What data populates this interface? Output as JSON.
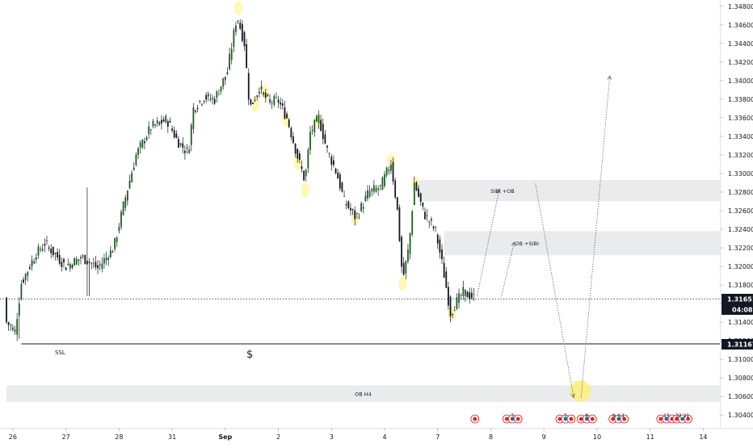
{
  "chart_data": {
    "type": "candlestick",
    "instrument": "",
    "y_axis": {
      "min": 1.3035,
      "max": 1.3485,
      "tick_labels": [
        "1.34800",
        "1.34600",
        "1.34400",
        "1.34200",
        "1.34000",
        "1.33800",
        "1.33600",
        "1.33400",
        "1.33200",
        "1.33000",
        "1.32800",
        "1.32600",
        "1.32400",
        "1.32200",
        "1.32000",
        "1.31800",
        "1.31600",
        "1.31400",
        "1.31200",
        "1.31000",
        "1.30800",
        "1.30600",
        "1.30400"
      ],
      "tick_values": [
        1.348,
        1.346,
        1.344,
        1.342,
        1.34,
        1.338,
        1.336,
        1.334,
        1.332,
        1.33,
        1.328,
        1.326,
        1.324,
        1.322,
        1.32,
        1.318,
        1.316,
        1.314,
        1.312,
        1.31,
        1.308,
        1.306,
        1.304
      ],
      "position": "right"
    },
    "x_axis": {
      "labels": [
        "26",
        "27",
        "28",
        "31",
        "Sep",
        "2",
        "3",
        "4",
        "7",
        "8",
        "9",
        "10",
        "11",
        "14"
      ],
      "label_positions": [
        0.0,
        5.0,
        10.0,
        15.0,
        20.0,
        25.0,
        30.0,
        35.0,
        40.0,
        45.0,
        50.0,
        55.0,
        60.0,
        65.0
      ],
      "range": [
        -0.6,
        65.5
      ]
    },
    "current_price": {
      "label": "1.31651",
      "value": 1.31651,
      "countdown": "04:08",
      "color": "#131722"
    },
    "ssl_level": {
      "label": "1.31167",
      "value": 1.31167,
      "text": "SSL"
    },
    "zones": [
      {
        "label": "SIBI +OB",
        "y_low": 1.327,
        "y_high": 1.3293,
        "x_start": 38.3
      },
      {
        "label": "OB +SIBI",
        "y_low": 1.3212,
        "y_high": 1.3238,
        "x_start": 40.6
      },
      {
        "label": "OB H4",
        "y_low": 1.3054,
        "y_high": 1.3072,
        "x_start": -0.6
      }
    ],
    "candles": [],
    "markers": {
      "dollar": "$"
    },
    "event_badges": [
      {
        "x": 43.5,
        "text": ""
      },
      {
        "x": 46.5,
        "text": "3"
      },
      {
        "x": 51.5,
        "text": "5"
      },
      {
        "x": 53.5,
        "text": "8"
      },
      {
        "x": 56.5,
        "text": "9 4 1"
      },
      {
        "x": 61.0,
        "text": "13"
      },
      {
        "x": 62.5,
        "text": "33 21"
      }
    ],
    "projection_paths": [
      [
        [
          43.7,
          1.3168
        ],
        [
          45.8,
          1.3283
        ]
      ],
      [
        [
          46.0,
          1.3168
        ],
        [
          47.2,
          1.3226
        ]
      ],
      [
        [
          49.2,
          1.3289
        ],
        [
          52.8,
          1.3059
        ]
      ],
      [
        [
          53.5,
          1.3059
        ],
        [
          56.2,
          1.3405
        ]
      ]
    ],
    "highlights": [
      [
        21.2,
        1.3478
      ],
      [
        22.8,
        1.3374
      ],
      [
        23.7,
        1.3388
      ],
      [
        25.7,
        1.3358
      ],
      [
        26.8,
        1.3312
      ],
      [
        27.5,
        1.3282
      ],
      [
        28.7,
        1.3356
      ],
      [
        32.2,
        1.3252
      ],
      [
        35.6,
        1.3314
      ],
      [
        37.9,
        1.3289
      ],
      [
        36.7,
        1.3182
      ],
      [
        41.3,
        1.3149
      ]
    ],
    "big_highlight": [
      53.4,
      1.3066
    ]
  }
}
